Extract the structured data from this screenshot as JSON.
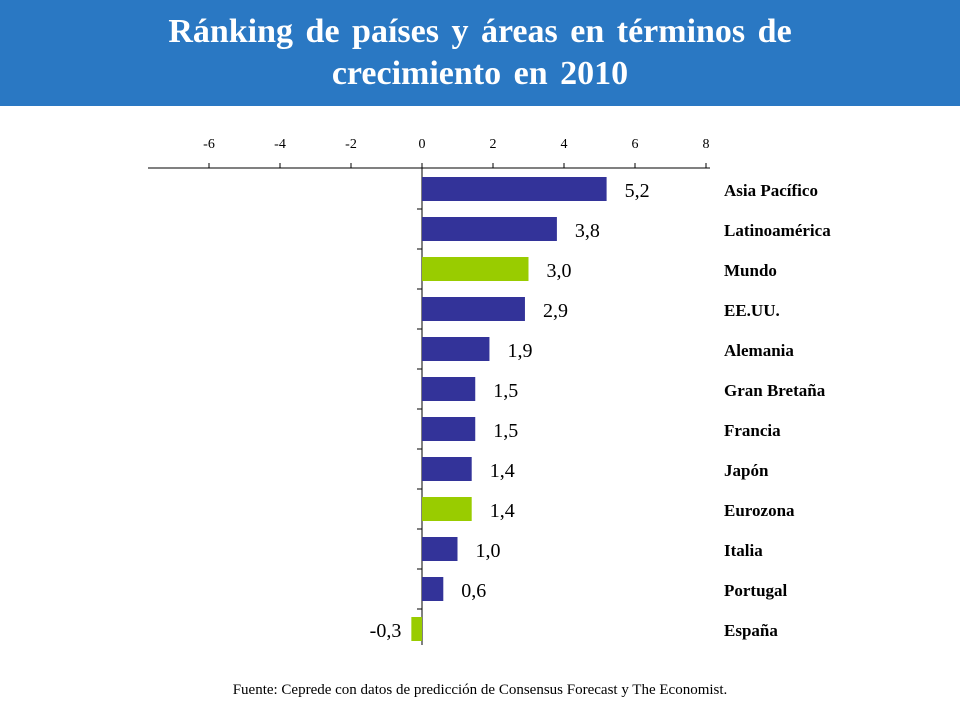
{
  "header": {
    "title": "Ránking de países y áreas en términos de crecimiento en 2010"
  },
  "chart_data": {
    "type": "bar",
    "orientation": "horizontal",
    "categories": [
      "Asia Pacífico",
      "Latinoamérica",
      "Mundo",
      "EE.UU.",
      "Alemania",
      "Gran Bretaña",
      "Francia",
      "Japón",
      "Eurozona",
      "Italia",
      "Portugal",
      "España"
    ],
    "values": [
      5.2,
      3.8,
      3.0,
      2.9,
      1.9,
      1.5,
      1.5,
      1.4,
      1.4,
      1.0,
      0.6,
      -0.3
    ],
    "value_labels": [
      "5,2",
      "3,8",
      "3,0",
      "2,9",
      "1,9",
      "1,5",
      "1,5",
      "1,4",
      "1,4",
      "1,0",
      "0,6",
      "-0,3"
    ],
    "highlighted": [
      false,
      false,
      true,
      false,
      false,
      false,
      false,
      false,
      true,
      false,
      false,
      true
    ],
    "xlim": [
      -8,
      8
    ],
    "xticks": [
      -6,
      -4,
      -2,
      0,
      2,
      4,
      6,
      8
    ],
    "xtick_labels": [
      "-6",
      "-4",
      "-2",
      "0",
      "2",
      "4",
      "6",
      "8"
    ],
    "x_axis_position": "top",
    "grid": false,
    "colors": {
      "default": "#333399",
      "highlight": "#99cc00",
      "axis": "#000000"
    }
  },
  "footer": {
    "source": "Fuente: Ceprede con datos de predicción de Consensus Forecast y The Economist."
  }
}
